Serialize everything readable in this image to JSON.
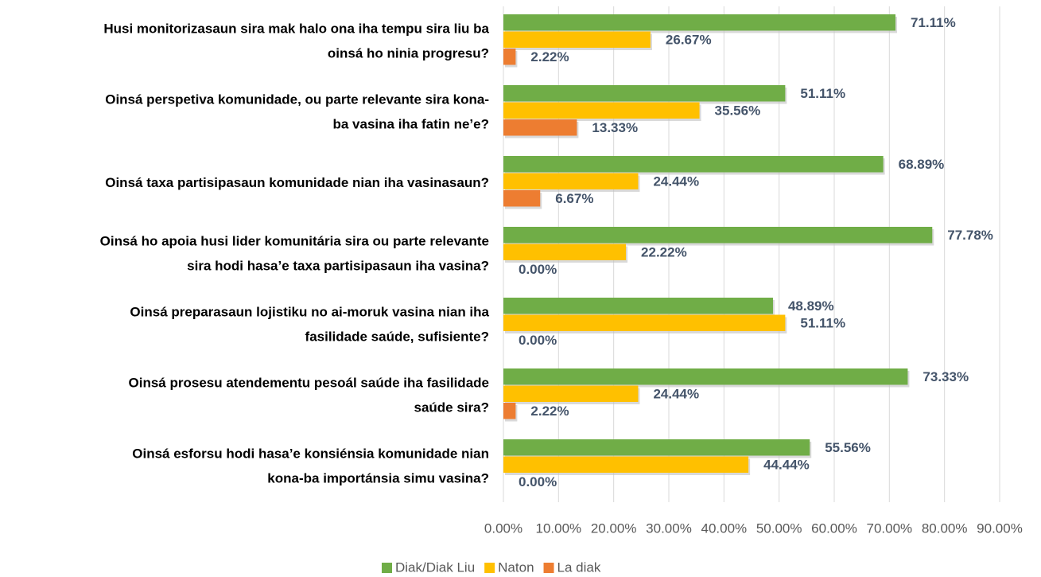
{
  "chart_data": {
    "type": "bar",
    "orientation": "horizontal",
    "categories": [
      [
        "Husi monitorizasaun sira mak halo ona iha tempu sira liu ba",
        "oinsá ho ninia progresu?"
      ],
      [
        "Oinsá perspetiva komunidade, ou parte relevante sira kona-",
        "ba vasina iha fatin ne’e?"
      ],
      [
        "Oinsá taxa partisipasaun komunidade nian iha vasinasaun?"
      ],
      [
        "Oinsá ho apoia husi lider komunitária sira ou parte relevante",
        "sira hodi hasa’e taxa partisipasaun iha vasina?"
      ],
      [
        "Oinsá preparasaun lojistiku no ai-moruk vasina nian iha",
        "fasilidade saúde, sufisiente?"
      ],
      [
        "Oinsá prosesu atendementu pesoál saúde iha fasilidade",
        "saúde sira?"
      ],
      [
        "Oinsá esforsu hodi hasa’e konsiénsia komunidade nian",
        "kona-ba importánsia simu vasina?"
      ]
    ],
    "series": [
      {
        "name": "Diak/Diak Liu",
        "color": "#70ad47",
        "values": [
          71.11,
          51.11,
          68.89,
          77.78,
          48.89,
          73.33,
          55.56
        ],
        "value_labels": [
          "71.11%",
          "51.11%",
          "68.89%",
          "77.78%",
          "48.89%",
          "73.33%",
          "55.56%"
        ]
      },
      {
        "name": "Naton",
        "color": "#ffc000",
        "values": [
          26.67,
          35.56,
          24.44,
          22.22,
          51.11,
          24.44,
          44.44
        ],
        "value_labels": [
          "26.67%",
          "35.56%",
          "24.44%",
          "22.22%",
          "51.11%",
          "24.44%",
          "44.44%"
        ]
      },
      {
        "name": "La diak",
        "color": "#ed7d31",
        "values": [
          2.22,
          13.33,
          6.67,
          0,
          0,
          2.22,
          0
        ],
        "value_labels": [
          "2.22%",
          "13.33%",
          "6.67%",
          "0.00%",
          "0.00%",
          "2.22%",
          "0.00%"
        ]
      }
    ],
    "xlim": [
      0,
      90
    ],
    "xticks": [
      {
        "value": 0,
        "label": "0.00%"
      },
      {
        "value": 10,
        "label": "10.00%"
      },
      {
        "value": 20,
        "label": "20.00%"
      },
      {
        "value": 30,
        "label": "30.00%"
      },
      {
        "value": 40,
        "label": "40.00%"
      },
      {
        "value": 50,
        "label": "50.00%"
      },
      {
        "value": 60,
        "label": "60.00%"
      },
      {
        "value": 70,
        "label": "70.00%"
      },
      {
        "value": 80,
        "label": "80.00%"
      },
      {
        "value": 90,
        "label": "90.00%"
      }
    ],
    "grid": true,
    "legend": "bottom"
  }
}
